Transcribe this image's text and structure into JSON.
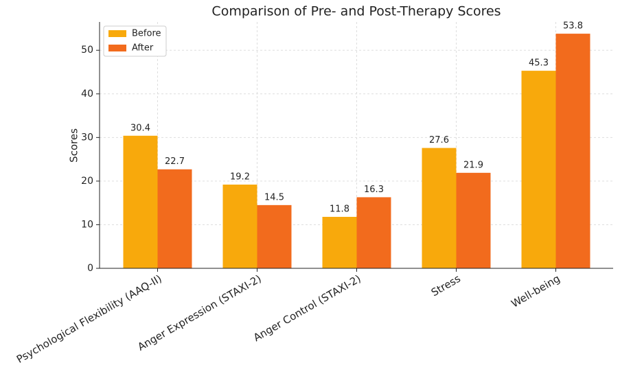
{
  "chart_data": {
    "type": "bar",
    "title": "Comparison of Pre- and Post-Therapy Scores",
    "y_label": "Scores",
    "categories": [
      "Psychological Flexibility (AAQ-II)",
      "Anger Expression (STAXI-2)",
      "Anger Control (STAXI-2)",
      "Stress",
      "Well-being"
    ],
    "series": [
      {
        "name": "Before",
        "color": "#f8a90c",
        "values": [
          30.4,
          19.2,
          11.8,
          27.6,
          45.3
        ]
      },
      {
        "name": "After",
        "color": "#f26b1d",
        "values": [
          22.7,
          14.5,
          16.3,
          21.9,
          53.8
        ]
      }
    ],
    "ylim": [
      0,
      56.49
    ],
    "yticks": [
      0,
      10,
      20,
      30,
      40,
      50
    ],
    "grid": true,
    "legend": "upper left"
  }
}
